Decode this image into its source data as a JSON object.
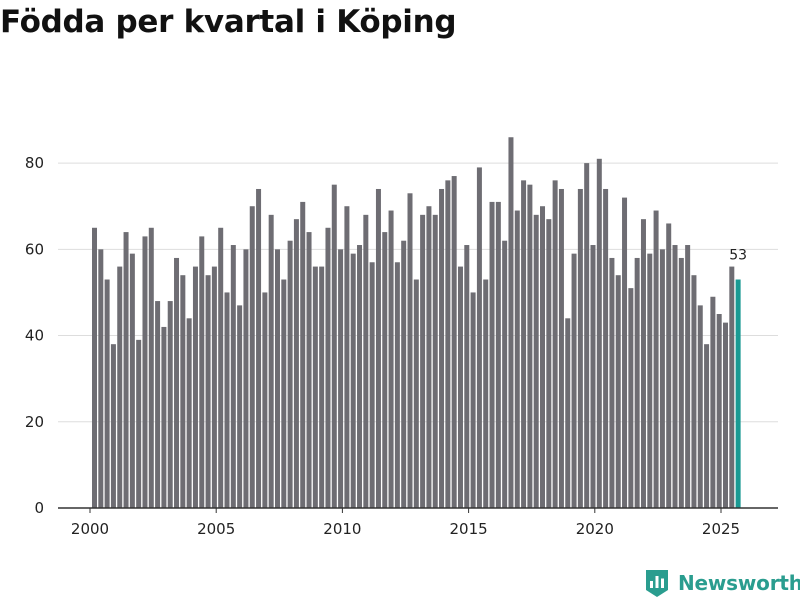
{
  "chart_data": {
    "type": "bar",
    "title": "Födda per kvartal i Köping",
    "xlabel": "",
    "ylabel": "",
    "ylim": [
      0,
      90
    ],
    "yticks": [
      0,
      20,
      40,
      60,
      80
    ],
    "xticks": [
      "2000",
      "2005",
      "2010",
      "2015",
      "2020",
      "2025"
    ],
    "x_start_year": 2000,
    "x_end_year": 2026,
    "values": [
      65,
      60,
      53,
      38,
      56,
      64,
      59,
      39,
      63,
      65,
      48,
      42,
      48,
      58,
      54,
      44,
      56,
      63,
      54,
      56,
      65,
      50,
      61,
      47,
      60,
      70,
      74,
      50,
      68,
      60,
      53,
      62,
      67,
      71,
      64,
      56,
      56,
      65,
      75,
      60,
      70,
      59,
      61,
      68,
      57,
      74,
      64,
      69,
      57,
      62,
      73,
      53,
      68,
      70,
      68,
      74,
      76,
      77,
      56,
      61,
      50,
      79,
      53,
      71,
      71,
      62,
      86,
      69,
      76,
      75,
      68,
      70,
      67,
      76,
      74,
      44,
      59,
      74,
      80,
      61,
      81,
      74,
      58,
      54,
      72,
      51,
      58,
      67,
      59,
      69,
      60,
      66,
      61,
      58,
      61,
      54,
      47,
      38,
      49,
      45,
      43,
      56,
      53
    ],
    "highlight_label": "53",
    "grid": true,
    "colors": {
      "bar": "#6e6d73",
      "highlight": "#1a9a93",
      "grid": "#dddddd",
      "axis": "#333333"
    }
  },
  "branding": {
    "name": "Newsworthy",
    "color": "#2a9d8f"
  }
}
